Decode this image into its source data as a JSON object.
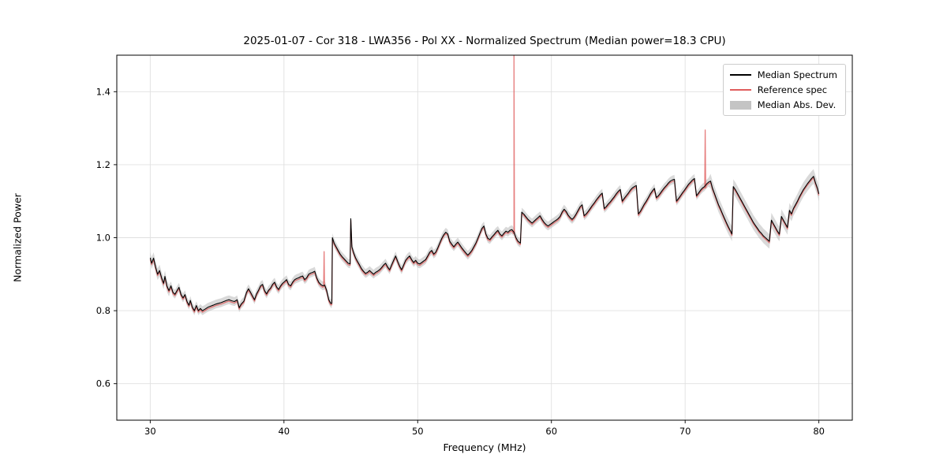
{
  "figure": {
    "title": "2025-01-07 - Cor 318 - LWA356 - Pol XX - Normalized Spectrum (Median power=18.3 CPU)",
    "xlabel": "Frequency (MHz)",
    "ylabel": "Normalized Power"
  },
  "legend": {
    "items": [
      {
        "label": "Median Spectrum",
        "type": "line",
        "color": "#000000"
      },
      {
        "label": "Reference spec",
        "type": "line",
        "color": "#e05c5c"
      },
      {
        "label": "Median Abs. Dev.",
        "type": "band",
        "color": "#c4c4c4"
      }
    ]
  },
  "chart_data": {
    "type": "line",
    "title": "2025-01-07 - Cor 318 - LWA356 - Pol XX - Normalized Spectrum (Median power=18.3 CPU)",
    "xlabel": "Frequency (MHz)",
    "ylabel": "Normalized Power",
    "xlim": [
      27.5,
      82.5
    ],
    "ylim": [
      0.5,
      1.5
    ],
    "xticks": [
      30,
      40,
      50,
      60,
      70,
      80
    ],
    "xtick_labels": [
      "30",
      "40",
      "50",
      "60",
      "70",
      "80"
    ],
    "yticks": [
      0.6,
      0.8,
      1.0,
      1.2,
      1.4
    ],
    "ytick_labels": [
      "0.6",
      "0.8",
      "1.0",
      "1.2",
      "1.4"
    ],
    "grid": true,
    "legend_position": "upper right",
    "colors": {
      "median": "#000000",
      "reference": "#e05c5c",
      "band": "#b9b9b9",
      "grid": "#e0e0e0"
    },
    "median_points": [
      [
        30.0,
        0.945
      ],
      [
        30.1,
        0.93
      ],
      [
        30.25,
        0.944
      ],
      [
        30.4,
        0.92
      ],
      [
        30.55,
        0.9
      ],
      [
        30.7,
        0.91
      ],
      [
        30.85,
        0.89
      ],
      [
        31.0,
        0.875
      ],
      [
        31.1,
        0.894
      ],
      [
        31.25,
        0.868
      ],
      [
        31.4,
        0.855
      ],
      [
        31.55,
        0.868
      ],
      [
        31.7,
        0.85
      ],
      [
        31.85,
        0.845
      ],
      [
        32.0,
        0.855
      ],
      [
        32.15,
        0.864
      ],
      [
        32.3,
        0.845
      ],
      [
        32.45,
        0.835
      ],
      [
        32.6,
        0.844
      ],
      [
        32.75,
        0.825
      ],
      [
        32.9,
        0.815
      ],
      [
        33.0,
        0.828
      ],
      [
        33.15,
        0.81
      ],
      [
        33.3,
        0.8
      ],
      [
        33.45,
        0.814
      ],
      [
        33.6,
        0.8
      ],
      [
        33.75,
        0.806
      ],
      [
        33.9,
        0.8
      ],
      [
        34.1,
        0.804
      ],
      [
        34.3,
        0.809
      ],
      [
        34.5,
        0.812
      ],
      [
        34.7,
        0.815
      ],
      [
        34.9,
        0.818
      ],
      [
        35.1,
        0.82
      ],
      [
        35.3,
        0.822
      ],
      [
        35.5,
        0.825
      ],
      [
        35.7,
        0.828
      ],
      [
        35.9,
        0.83
      ],
      [
        36.1,
        0.827
      ],
      [
        36.3,
        0.825
      ],
      [
        36.5,
        0.83
      ],
      [
        36.65,
        0.808
      ],
      [
        36.8,
        0.818
      ],
      [
        37.0,
        0.826
      ],
      [
        37.2,
        0.85
      ],
      [
        37.35,
        0.86
      ],
      [
        37.5,
        0.85
      ],
      [
        37.65,
        0.84
      ],
      [
        37.8,
        0.83
      ],
      [
        37.95,
        0.846
      ],
      [
        38.1,
        0.856
      ],
      [
        38.25,
        0.868
      ],
      [
        38.4,
        0.872
      ],
      [
        38.55,
        0.855
      ],
      [
        38.7,
        0.846
      ],
      [
        38.85,
        0.856
      ],
      [
        39.0,
        0.862
      ],
      [
        39.15,
        0.872
      ],
      [
        39.3,
        0.878
      ],
      [
        39.45,
        0.865
      ],
      [
        39.6,
        0.858
      ],
      [
        39.75,
        0.868
      ],
      [
        39.9,
        0.875
      ],
      [
        40.05,
        0.88
      ],
      [
        40.2,
        0.885
      ],
      [
        40.35,
        0.872
      ],
      [
        40.5,
        0.868
      ],
      [
        40.65,
        0.878
      ],
      [
        40.8,
        0.885
      ],
      [
        40.95,
        0.888
      ],
      [
        41.1,
        0.89
      ],
      [
        41.25,
        0.893
      ],
      [
        41.4,
        0.895
      ],
      [
        41.55,
        0.885
      ],
      [
        41.7,
        0.89
      ],
      [
        41.85,
        0.9
      ],
      [
        42.0,
        0.903
      ],
      [
        42.15,
        0.905
      ],
      [
        42.3,
        0.908
      ],
      [
        42.45,
        0.89
      ],
      [
        42.6,
        0.878
      ],
      [
        42.75,
        0.872
      ],
      [
        42.9,
        0.868
      ],
      [
        43.05,
        0.87
      ],
      [
        43.2,
        0.855
      ],
      [
        43.35,
        0.83
      ],
      [
        43.5,
        0.82
      ],
      [
        43.58,
        0.82
      ],
      [
        43.62,
        1.0
      ],
      [
        43.75,
        0.985
      ],
      [
        43.9,
        0.975
      ],
      [
        44.05,
        0.965
      ],
      [
        44.2,
        0.955
      ],
      [
        44.35,
        0.948
      ],
      [
        44.5,
        0.942
      ],
      [
        44.65,
        0.936
      ],
      [
        44.8,
        0.93
      ],
      [
        44.95,
        0.928
      ],
      [
        45.0,
        1.052
      ],
      [
        45.08,
        0.975
      ],
      [
        45.2,
        0.96
      ],
      [
        45.35,
        0.945
      ],
      [
        45.5,
        0.935
      ],
      [
        45.65,
        0.925
      ],
      [
        45.8,
        0.915
      ],
      [
        45.95,
        0.908
      ],
      [
        46.1,
        0.902
      ],
      [
        46.25,
        0.905
      ],
      [
        46.4,
        0.91
      ],
      [
        46.55,
        0.905
      ],
      [
        46.7,
        0.9
      ],
      [
        46.85,
        0.905
      ],
      [
        47.0,
        0.908
      ],
      [
        47.15,
        0.912
      ],
      [
        47.3,
        0.918
      ],
      [
        47.45,
        0.925
      ],
      [
        47.6,
        0.93
      ],
      [
        47.75,
        0.92
      ],
      [
        47.9,
        0.912
      ],
      [
        48.05,
        0.925
      ],
      [
        48.2,
        0.938
      ],
      [
        48.35,
        0.95
      ],
      [
        48.5,
        0.935
      ],
      [
        48.65,
        0.922
      ],
      [
        48.8,
        0.912
      ],
      [
        48.95,
        0.925
      ],
      [
        49.1,
        0.938
      ],
      [
        49.25,
        0.945
      ],
      [
        49.4,
        0.95
      ],
      [
        49.55,
        0.94
      ],
      [
        49.7,
        0.932
      ],
      [
        49.85,
        0.938
      ],
      [
        50.0,
        0.93
      ],
      [
        50.15,
        0.928
      ],
      [
        50.3,
        0.932
      ],
      [
        50.45,
        0.936
      ],
      [
        50.6,
        0.94
      ],
      [
        50.75,
        0.95
      ],
      [
        50.9,
        0.96
      ],
      [
        51.05,
        0.965
      ],
      [
        51.2,
        0.955
      ],
      [
        51.35,
        0.96
      ],
      [
        51.5,
        0.972
      ],
      [
        51.65,
        0.985
      ],
      [
        51.8,
        0.998
      ],
      [
        51.95,
        1.008
      ],
      [
        52.1,
        1.015
      ],
      [
        52.25,
        1.01
      ],
      [
        52.4,
        0.99
      ],
      [
        52.55,
        0.982
      ],
      [
        52.7,
        0.975
      ],
      [
        52.85,
        0.982
      ],
      [
        53.0,
        0.988
      ],
      [
        53.15,
        0.98
      ],
      [
        53.3,
        0.972
      ],
      [
        53.45,
        0.965
      ],
      [
        53.6,
        0.958
      ],
      [
        53.75,
        0.952
      ],
      [
        53.9,
        0.958
      ],
      [
        54.05,
        0.965
      ],
      [
        54.2,
        0.975
      ],
      [
        54.35,
        0.985
      ],
      [
        54.5,
        0.998
      ],
      [
        54.65,
        1.012
      ],
      [
        54.8,
        1.025
      ],
      [
        54.95,
        1.032
      ],
      [
        55.1,
        1.01
      ],
      [
        55.25,
        0.998
      ],
      [
        55.4,
        0.995
      ],
      [
        55.55,
        1.002
      ],
      [
        55.7,
        1.008
      ],
      [
        55.85,
        1.015
      ],
      [
        56.0,
        1.02
      ],
      [
        56.15,
        1.01
      ],
      [
        56.3,
        1.005
      ],
      [
        56.45,
        1.012
      ],
      [
        56.6,
        1.018
      ],
      [
        56.75,
        1.015
      ],
      [
        56.9,
        1.02
      ],
      [
        57.05,
        1.022
      ],
      [
        57.2,
        1.015
      ],
      [
        57.35,
        1.0
      ],
      [
        57.5,
        0.99
      ],
      [
        57.68,
        0.985
      ],
      [
        57.78,
        1.07
      ],
      [
        57.95,
        1.064
      ],
      [
        58.1,
        1.057
      ],
      [
        58.25,
        1.05
      ],
      [
        58.4,
        1.045
      ],
      [
        58.55,
        1.04
      ],
      [
        58.7,
        1.045
      ],
      [
        58.85,
        1.05
      ],
      [
        59.0,
        1.055
      ],
      [
        59.15,
        1.06
      ],
      [
        59.3,
        1.05
      ],
      [
        59.45,
        1.042
      ],
      [
        59.6,
        1.036
      ],
      [
        59.75,
        1.032
      ],
      [
        59.9,
        1.036
      ],
      [
        60.05,
        1.04
      ],
      [
        60.2,
        1.044
      ],
      [
        60.35,
        1.048
      ],
      [
        60.5,
        1.052
      ],
      [
        60.65,
        1.058
      ],
      [
        60.8,
        1.07
      ],
      [
        60.95,
        1.078
      ],
      [
        61.1,
        1.072
      ],
      [
        61.25,
        1.062
      ],
      [
        61.4,
        1.055
      ],
      [
        61.55,
        1.05
      ],
      [
        61.7,
        1.056
      ],
      [
        61.85,
        1.065
      ],
      [
        62.0,
        1.075
      ],
      [
        62.15,
        1.085
      ],
      [
        62.3,
        1.09
      ],
      [
        62.45,
        1.06
      ],
      [
        62.6,
        1.065
      ],
      [
        62.75,
        1.072
      ],
      [
        62.9,
        1.08
      ],
      [
        63.05,
        1.088
      ],
      [
        63.2,
        1.095
      ],
      [
        63.35,
        1.103
      ],
      [
        63.5,
        1.11
      ],
      [
        63.65,
        1.117
      ],
      [
        63.8,
        1.122
      ],
      [
        63.95,
        1.08
      ],
      [
        64.1,
        1.085
      ],
      [
        64.25,
        1.092
      ],
      [
        64.4,
        1.098
      ],
      [
        64.55,
        1.105
      ],
      [
        64.7,
        1.112
      ],
      [
        64.85,
        1.12
      ],
      [
        65.0,
        1.127
      ],
      [
        65.15,
        1.132
      ],
      [
        65.3,
        1.1
      ],
      [
        65.45,
        1.108
      ],
      [
        65.6,
        1.115
      ],
      [
        65.75,
        1.122
      ],
      [
        65.9,
        1.13
      ],
      [
        66.05,
        1.136
      ],
      [
        66.2,
        1.14
      ],
      [
        66.35,
        1.143
      ],
      [
        66.5,
        1.065
      ],
      [
        66.65,
        1.072
      ],
      [
        66.8,
        1.082
      ],
      [
        66.95,
        1.092
      ],
      [
        67.1,
        1.1
      ],
      [
        67.25,
        1.11
      ],
      [
        67.4,
        1.12
      ],
      [
        67.55,
        1.128
      ],
      [
        67.7,
        1.135
      ],
      [
        67.85,
        1.11
      ],
      [
        68.0,
        1.115
      ],
      [
        68.15,
        1.122
      ],
      [
        68.3,
        1.13
      ],
      [
        68.45,
        1.137
      ],
      [
        68.6,
        1.143
      ],
      [
        68.75,
        1.15
      ],
      [
        68.9,
        1.155
      ],
      [
        69.05,
        1.158
      ],
      [
        69.2,
        1.16
      ],
      [
        69.35,
        1.1
      ],
      [
        69.5,
        1.107
      ],
      [
        69.65,
        1.115
      ],
      [
        69.8,
        1.123
      ],
      [
        69.95,
        1.13
      ],
      [
        70.1,
        1.138
      ],
      [
        70.25,
        1.146
      ],
      [
        70.4,
        1.152
      ],
      [
        70.55,
        1.158
      ],
      [
        70.7,
        1.162
      ],
      [
        70.85,
        1.115
      ],
      [
        71.0,
        1.122
      ],
      [
        71.15,
        1.13
      ],
      [
        71.3,
        1.136
      ],
      [
        71.45,
        1.14
      ],
      [
        71.6,
        1.147
      ],
      [
        71.75,
        1.152
      ],
      [
        71.9,
        1.155
      ],
      [
        72.05,
        1.135
      ],
      [
        72.2,
        1.12
      ],
      [
        72.35,
        1.105
      ],
      [
        72.5,
        1.09
      ],
      [
        72.65,
        1.078
      ],
      [
        72.8,
        1.065
      ],
      [
        72.95,
        1.052
      ],
      [
        73.1,
        1.04
      ],
      [
        73.25,
        1.028
      ],
      [
        73.4,
        1.018
      ],
      [
        73.5,
        1.01
      ],
      [
        73.6,
        1.14
      ],
      [
        73.75,
        1.132
      ],
      [
        73.9,
        1.122
      ],
      [
        74.05,
        1.112
      ],
      [
        74.2,
        1.102
      ],
      [
        74.35,
        1.092
      ],
      [
        74.5,
        1.082
      ],
      [
        74.65,
        1.072
      ],
      [
        74.8,
        1.062
      ],
      [
        74.95,
        1.052
      ],
      [
        75.1,
        1.042
      ],
      [
        75.25,
        1.034
      ],
      [
        75.4,
        1.026
      ],
      [
        75.55,
        1.018
      ],
      [
        75.7,
        1.012
      ],
      [
        75.85,
        1.005
      ],
      [
        76.0,
        1.0
      ],
      [
        76.15,
        0.995
      ],
      [
        76.3,
        0.99
      ],
      [
        76.45,
        1.048
      ],
      [
        76.6,
        1.038
      ],
      [
        76.75,
        1.028
      ],
      [
        76.9,
        1.018
      ],
      [
        77.05,
        1.01
      ],
      [
        77.2,
        1.058
      ],
      [
        77.35,
        1.048
      ],
      [
        77.5,
        1.038
      ],
      [
        77.65,
        1.028
      ],
      [
        77.8,
        1.075
      ],
      [
        77.95,
        1.065
      ],
      [
        78.1,
        1.08
      ],
      [
        78.25,
        1.09
      ],
      [
        78.4,
        1.1
      ],
      [
        78.55,
        1.112
      ],
      [
        78.7,
        1.122
      ],
      [
        78.85,
        1.132
      ],
      [
        79.0,
        1.14
      ],
      [
        79.15,
        1.148
      ],
      [
        79.3,
        1.155
      ],
      [
        79.45,
        1.162
      ],
      [
        79.6,
        1.168
      ],
      [
        79.75,
        1.15
      ],
      [
        79.9,
        1.135
      ],
      [
        80.0,
        1.12
      ]
    ],
    "reference": {
      "offset_from_median": -0.004,
      "opacity": 0.8,
      "spikes": [
        {
          "freq": 43.0,
          "value": 0.962
        },
        {
          "freq": 57.2,
          "value": 1.5
        },
        {
          "freq": 71.5,
          "value": 1.295
        }
      ]
    },
    "mad_band": {
      "halfwidth_default": 0.012,
      "opacity": 0.55,
      "regions": [
        {
          "from": 29.5,
          "to": 31.5,
          "halfwidth": 0.016
        },
        {
          "from": 71.8,
          "to": 80.5,
          "halfwidth": 0.02
        }
      ]
    }
  }
}
